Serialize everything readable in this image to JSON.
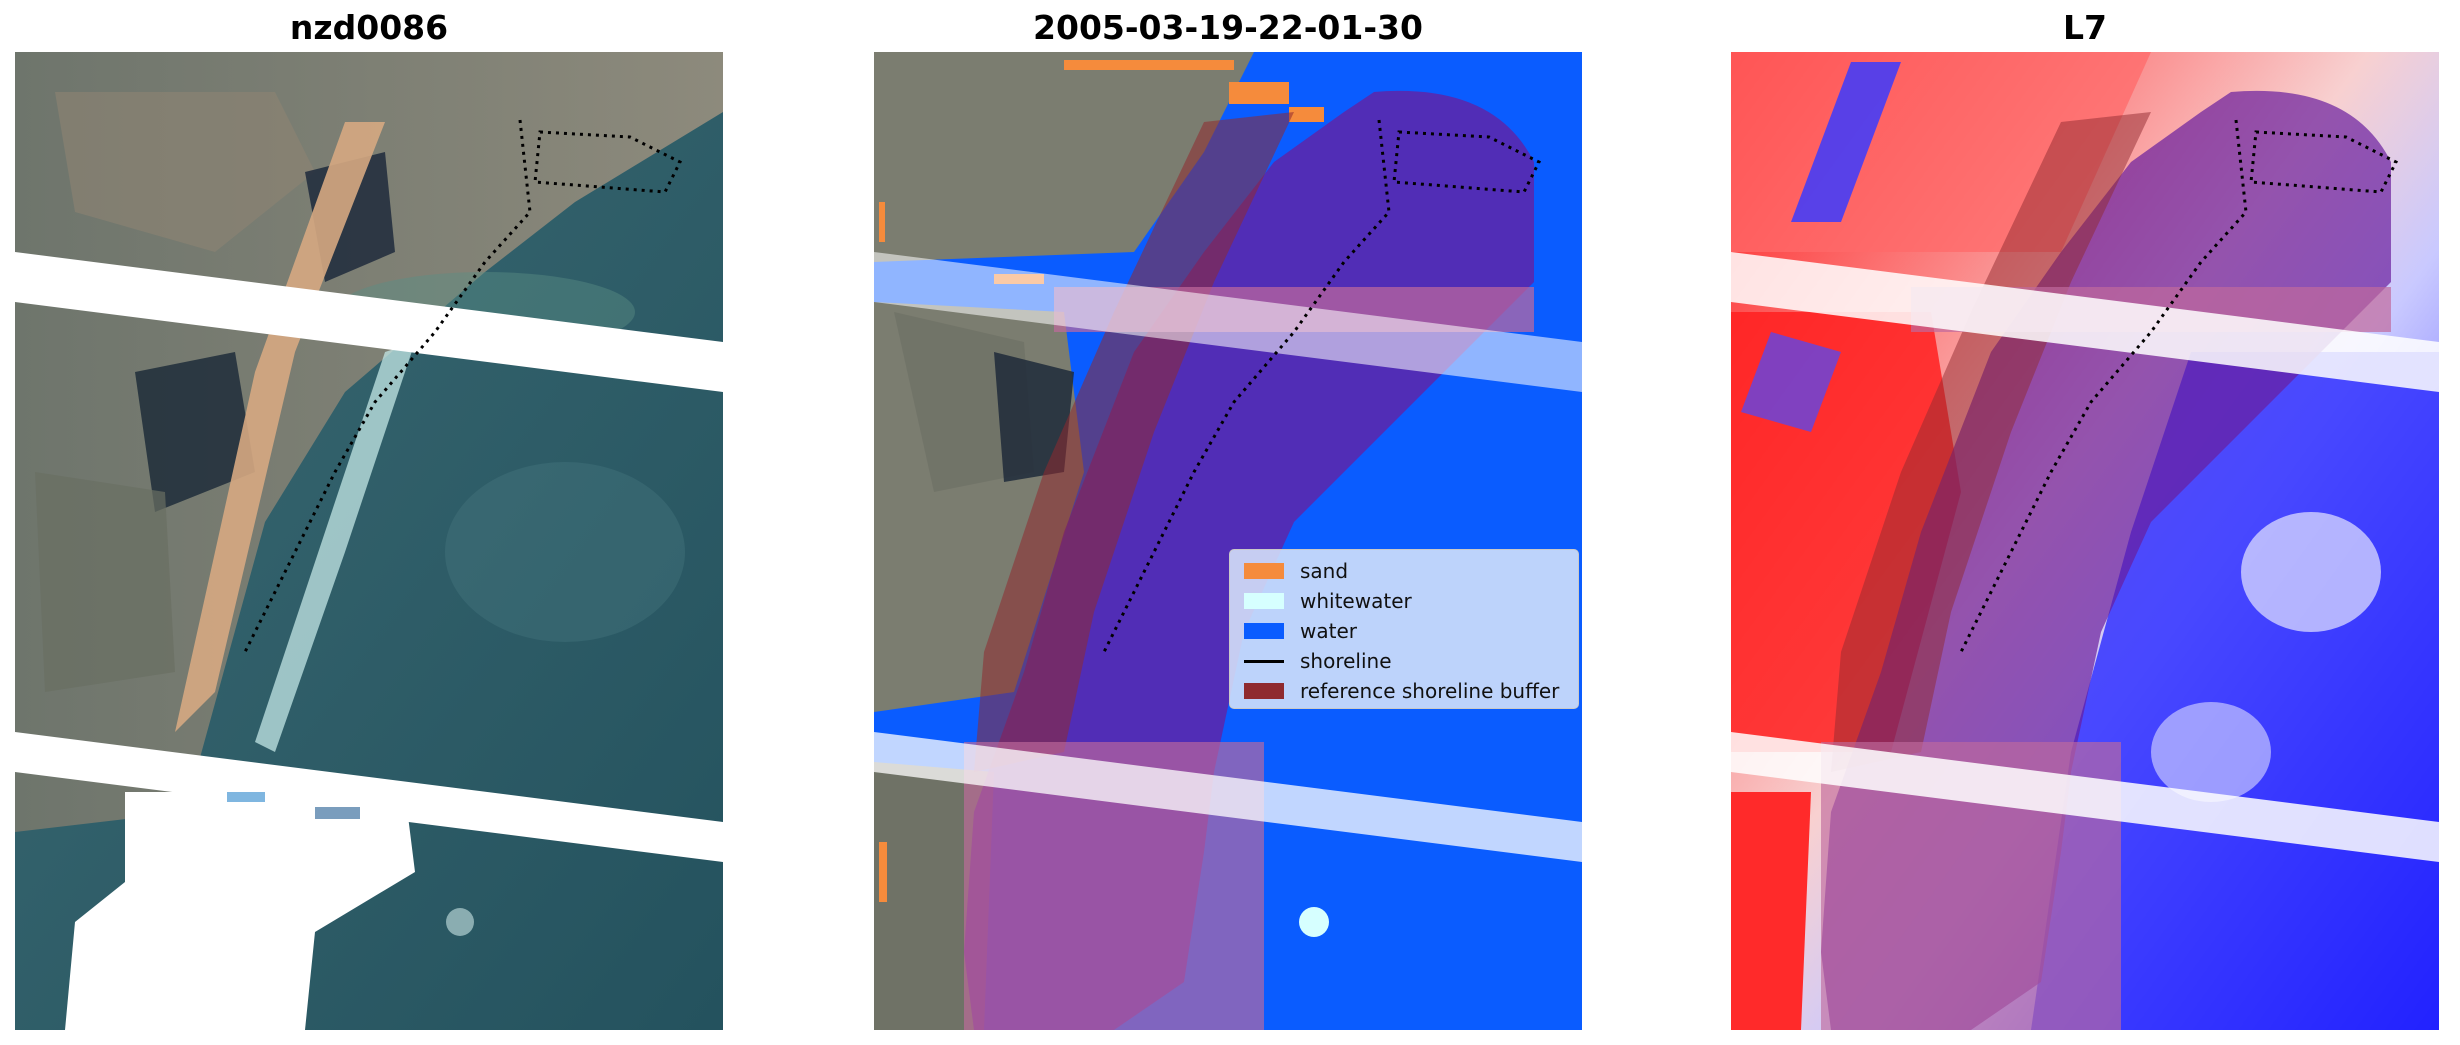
{
  "panels": [
    {
      "title": "nzd0086"
    },
    {
      "title": "2005-03-19-22-01-30"
    },
    {
      "title": "L7"
    }
  ],
  "legend": {
    "items": [
      {
        "label": "sand",
        "color": "#f58b3c",
        "kind": "patch"
      },
      {
        "label": "whitewater",
        "color": "#d6ffff",
        "kind": "patch"
      },
      {
        "label": "water",
        "color": "#0a5cff",
        "kind": "patch"
      },
      {
        "label": "shoreline",
        "color": "#000000",
        "kind": "line"
      },
      {
        "label": "reference shoreline buffer",
        "color": "#8f2a2f",
        "kind": "patch"
      }
    ]
  },
  "colors": {
    "sand": "#f58b3c",
    "whitewater": "#d6ffff",
    "water": "#0a5cff",
    "shoreline": "#000000",
    "buffer": "#8f2a2f",
    "nodata": "#ffffff"
  }
}
